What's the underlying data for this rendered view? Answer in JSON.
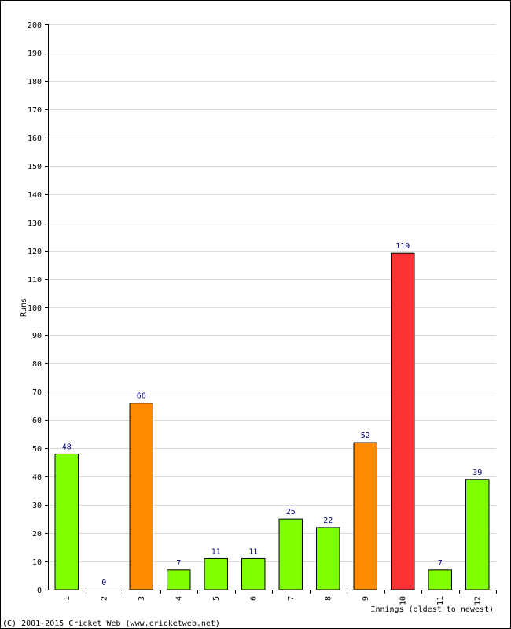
{
  "chart_data": {
    "type": "bar",
    "title": "",
    "xlabel": "Innings (oldest to newest)",
    "ylabel": "Runs",
    "categories": [
      "1",
      "2",
      "3",
      "4",
      "5",
      "6",
      "7",
      "8",
      "9",
      "10",
      "11",
      "12"
    ],
    "values": [
      48,
      0,
      66,
      7,
      11,
      11,
      25,
      22,
      52,
      119,
      7,
      39
    ],
    "bar_colors": [
      "#7fff00",
      "#7fff00",
      "#ff8c00",
      "#7fff00",
      "#7fff00",
      "#7fff00",
      "#7fff00",
      "#7fff00",
      "#ff8c00",
      "#ff3333",
      "#7fff00",
      "#7fff00"
    ],
    "ylim": [
      0,
      200
    ],
    "ytick_step": 10,
    "grid": true,
    "gridline_color": "#d9d9d9"
  },
  "footer": {
    "copyright": "(C) 2001-2015 Cricket Web (www.cricketweb.net)"
  }
}
